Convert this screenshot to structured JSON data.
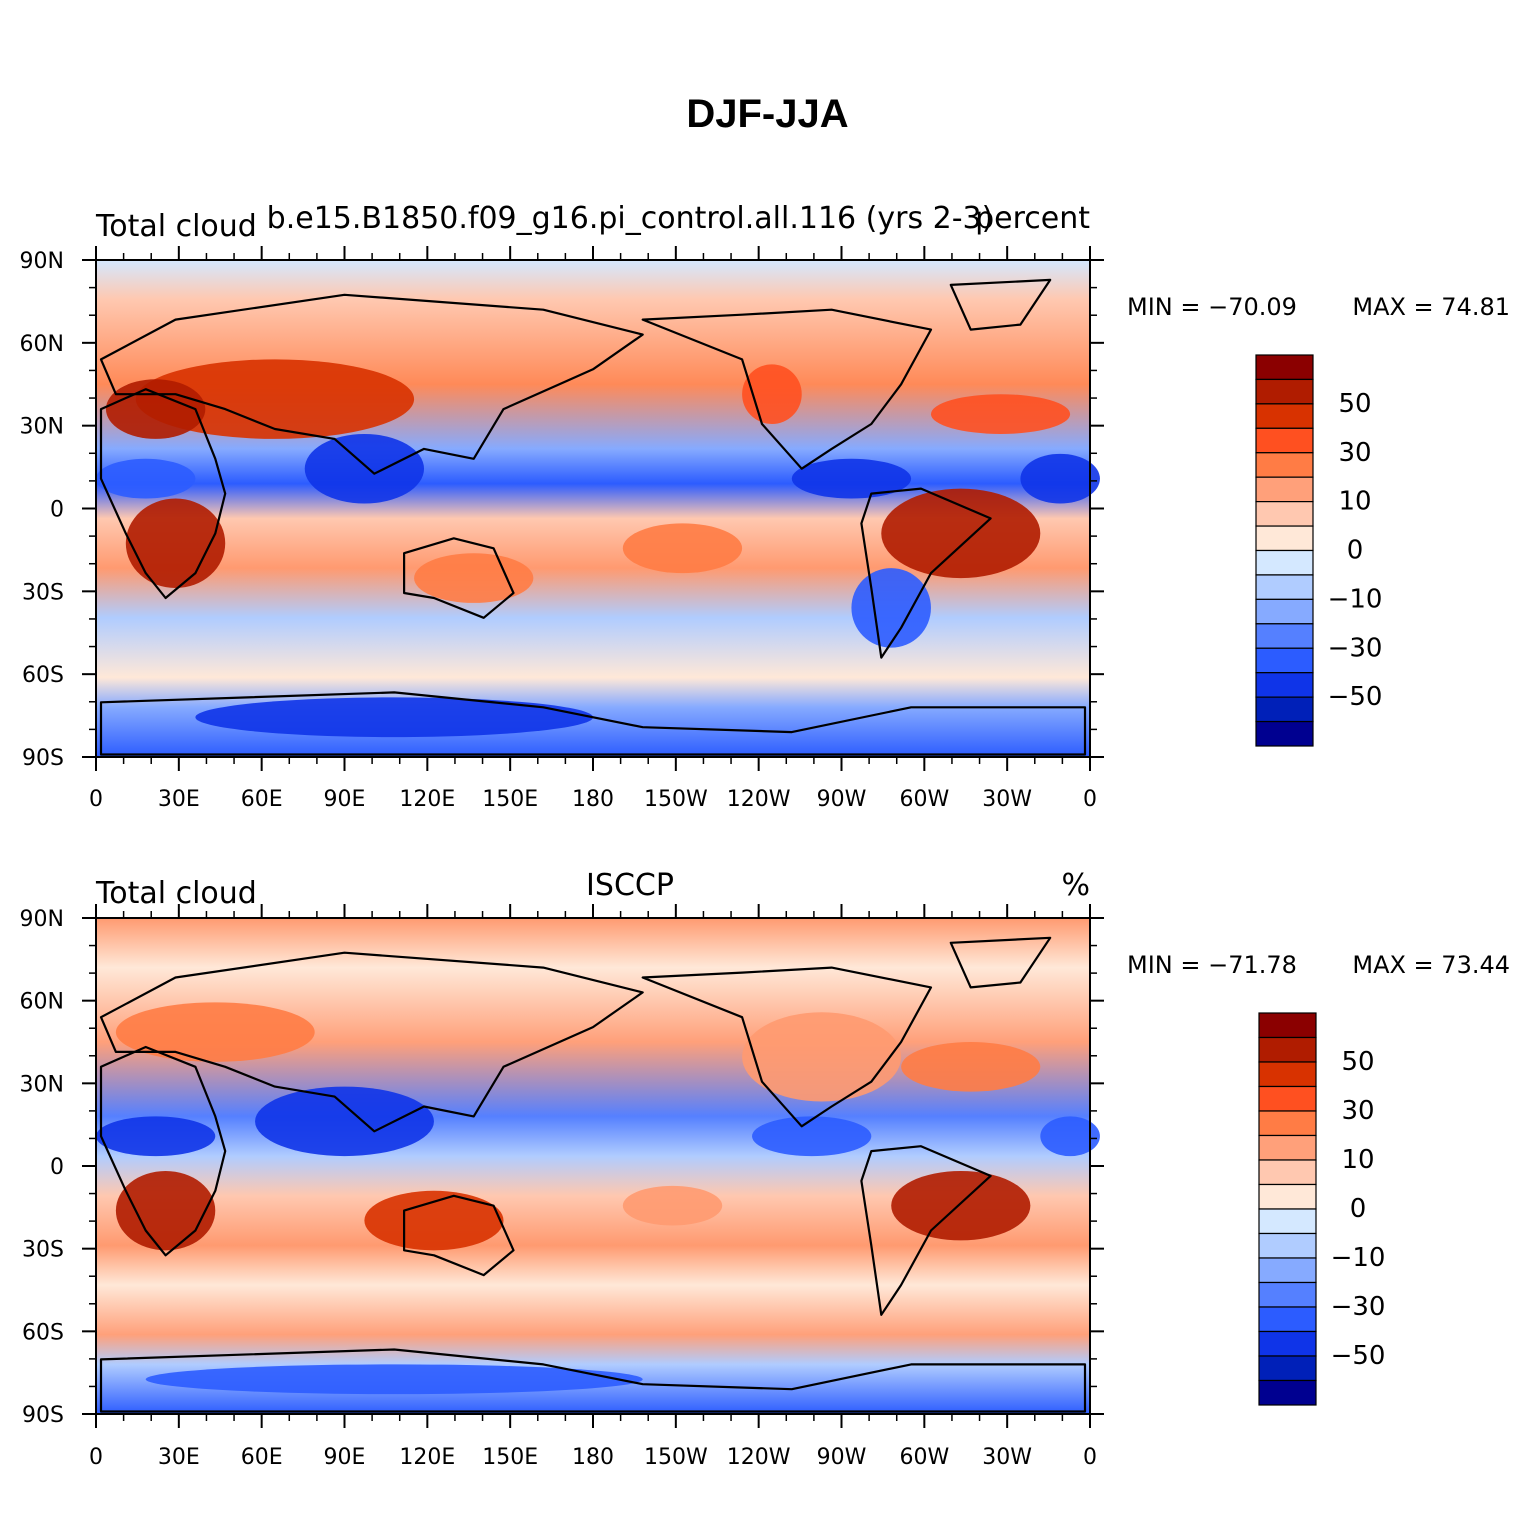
{
  "title": "DJF-JJA",
  "panels": [
    {
      "left_label": "Total cloud",
      "center_label": "b.e15.B1850.f09_g16.pi_control.all.116 (yrs 2-3)",
      "right_label": "percent",
      "min_text": "MIN = −70.09",
      "max_text": "MAX = 74.81",
      "colors": {
        "land_outline": "#000000"
      }
    },
    {
      "left_label": "Total cloud",
      "center_label": "ISCCP",
      "right_label": "%",
      "min_text": "MIN = −71.78",
      "max_text": "MAX = 73.44",
      "colors": {
        "land_outline": "#000000"
      }
    }
  ],
  "lat_labels": [
    "90N",
    "60N",
    "30N",
    "0",
    "30S",
    "60S",
    "90S"
  ],
  "lon_labels": [
    "0",
    "30E",
    "60E",
    "90E",
    "120E",
    "150E",
    "180",
    "150W",
    "120W",
    "90W",
    "60W",
    "30W",
    "0"
  ],
  "colorbar": {
    "colors": [
      "#8b0000",
      "#b01c00",
      "#d83200",
      "#ff5020",
      "#ff7c45",
      "#ffa07a",
      "#ffc8b0",
      "#ffe8d8",
      "#d4e8ff",
      "#b0ccff",
      "#86aaff",
      "#5580ff",
      "#2c5cff",
      "#0f34e8",
      "#0020b8",
      "#000090"
    ],
    "labels": [
      "50",
      "30",
      "10",
      "0",
      "−10",
      "−30",
      "−50"
    ]
  }
}
